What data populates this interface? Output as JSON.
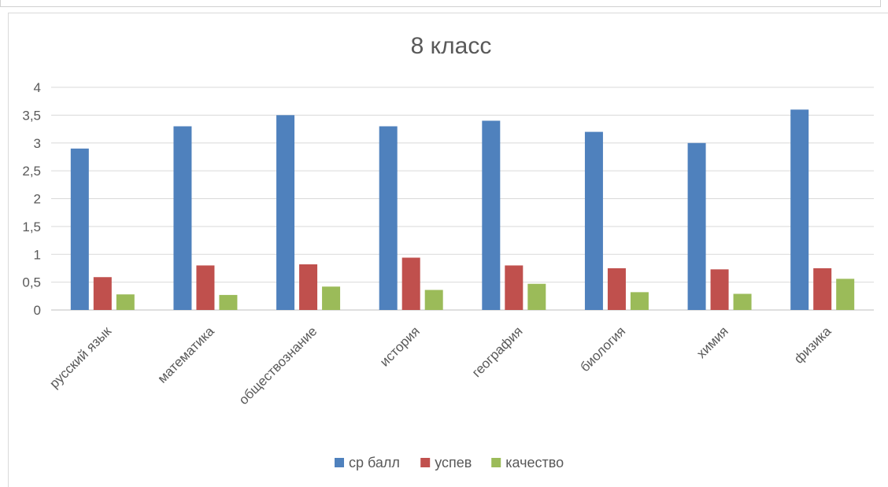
{
  "chart_data": {
    "type": "bar",
    "title": "8 класс",
    "categories": [
      "русский язык",
      "математика",
      "обществознание",
      "история",
      "география",
      "биология",
      "химия",
      "физика"
    ],
    "series": [
      {
        "name": "ср балл",
        "color": "#4f81bd",
        "values": [
          2.9,
          3.3,
          3.5,
          3.3,
          3.4,
          3.2,
          3.0,
          3.6
        ]
      },
      {
        "name": "успев",
        "color": "#c0504d",
        "values": [
          0.59,
          0.8,
          0.82,
          0.94,
          0.8,
          0.75,
          0.73,
          0.75
        ]
      },
      {
        "name": "качество",
        "color": "#9bbb59",
        "values": [
          0.28,
          0.27,
          0.42,
          0.36,
          0.47,
          0.32,
          0.29,
          0.56
        ]
      }
    ],
    "yticks": [
      "0",
      "0,5",
      "1",
      "1,5",
      "2",
      "2,5",
      "3",
      "3,5",
      "4"
    ],
    "ylim": [
      0,
      4
    ],
    "grid": true,
    "legend": "bottom"
  }
}
